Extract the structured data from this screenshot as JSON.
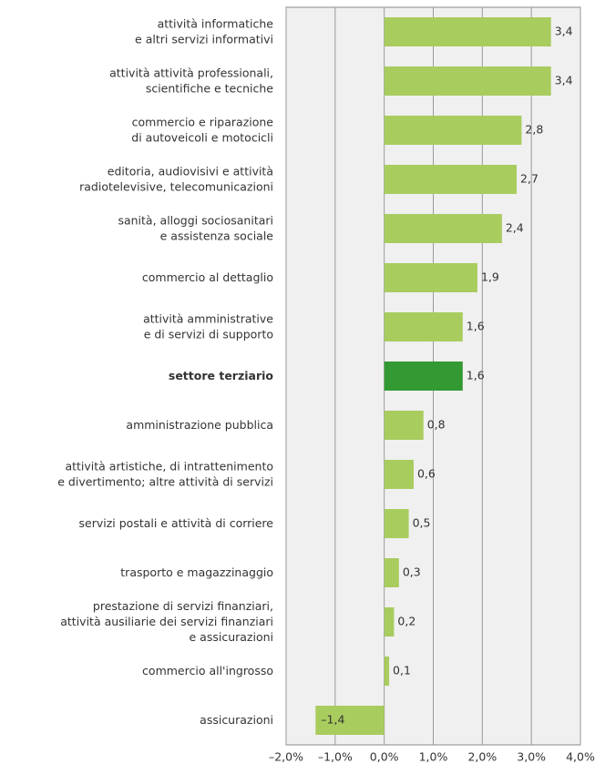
{
  "chart_data": {
    "type": "bar",
    "orientation": "horizontal",
    "categories": [
      [
        "attività informatiche",
        "e altri servizi informativi"
      ],
      [
        "attività attività professionali,",
        "scientifiche e tecniche"
      ],
      [
        "commercio e riparazione",
        "di autoveicoli e motocicli"
      ],
      [
        "editoria, audiovisivi e attività",
        "radiotelevisive, telecomunicazioni"
      ],
      [
        "sanità, alloggi sociosanitari",
        "e assistenza sociale"
      ],
      [
        "commercio al dettaglio"
      ],
      [
        "attività amministrative",
        "e di servizi di supporto"
      ],
      [
        "settore terziario"
      ],
      [
        "amministrazione pubblica"
      ],
      [
        "attività artistiche, di intrattenimento",
        "e divertimento; altre attività di servizi"
      ],
      [
        "servizi postali e attività di corriere"
      ],
      [
        "trasporto e magazzinaggio"
      ],
      [
        "prestazione di servizi finanziari,",
        "attività ausiliarie dei servizi finanziari",
        "e assicurazioni"
      ],
      [
        "commercio all'ingrosso"
      ],
      [
        "assicurazioni"
      ]
    ],
    "values": [
      3.4,
      3.4,
      2.8,
      2.7,
      2.4,
      1.9,
      1.6,
      1.6,
      0.8,
      0.6,
      0.5,
      0.3,
      0.2,
      0.1,
      -1.4
    ],
    "value_labels": [
      "3,4",
      "3,4",
      "2,8",
      "2,7",
      "2,4",
      "1,9",
      "1,6",
      "1,6",
      "0,8",
      "0,6",
      "0,5",
      "0,3",
      "0,2",
      "0,1",
      "–1,4"
    ],
    "color": "#a9cc5e",
    "highlight_color": "#339a33",
    "highlight_index": 7,
    "xlim": [
      -2,
      4
    ],
    "xticks": [
      {
        "value": -2,
        "label": "–2,0%"
      },
      {
        "value": -1,
        "label": "–1,0%"
      },
      {
        "value": 0,
        "label": "0,0%"
      },
      {
        "value": 1,
        "label": "1,0%"
      },
      {
        "value": 2,
        "label": "2,0%"
      },
      {
        "value": 3,
        "label": "3,0%"
      },
      {
        "value": 4,
        "label": "4,0%"
      }
    ],
    "grid": true
  }
}
